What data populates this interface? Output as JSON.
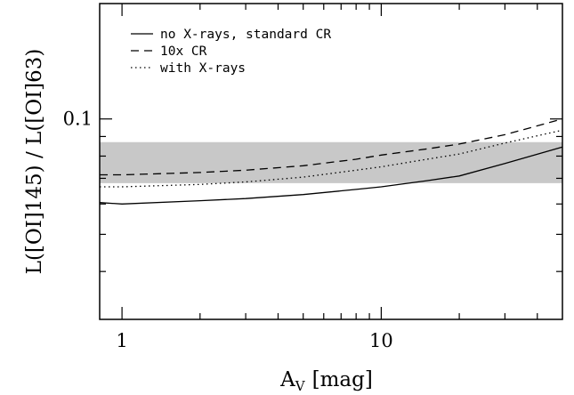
{
  "chart_data": {
    "type": "line",
    "xlabel": "A_V [mag]",
    "xlabel_main": "A",
    "xlabel_sub": "V",
    "xlabel_unit": "[mag]",
    "ylabel": "L([OI]145) / L([OI]63)",
    "x_scale": "log",
    "y_scale": "log",
    "xlim": [
      0.82,
      50
    ],
    "ylim": [
      0.03,
      0.2
    ],
    "x_ticks": [
      {
        "value": 1,
        "label": "1"
      },
      {
        "value": 10,
        "label": "10"
      }
    ],
    "y_ticks": [
      {
        "value": 0.1,
        "label": "0.1"
      }
    ],
    "x_minor_ticks": [
      2,
      3,
      4,
      5,
      6,
      7,
      8,
      9,
      20,
      30,
      40
    ],
    "y_minor_ticks": [
      0.04,
      0.05,
      0.06,
      0.07,
      0.08,
      0.09
    ],
    "shaded_band": {
      "y_range": [
        0.068,
        0.087
      ],
      "color": "#c8c8c8"
    },
    "legend_position": "top-left",
    "series": [
      {
        "name": "no X-rays, standard CR",
        "style": "solid",
        "x": [
          0.82,
          1,
          2,
          3,
          5,
          8,
          10,
          15,
          20,
          30,
          50
        ],
        "y": [
          0.0605,
          0.06,
          0.0612,
          0.062,
          0.0635,
          0.0655,
          0.0665,
          0.069,
          0.071,
          0.0765,
          0.0845
        ]
      },
      {
        "name": "10x CR",
        "style": "dashed",
        "x": [
          0.82,
          1,
          2,
          3,
          5,
          8,
          10,
          15,
          20,
          30,
          50
        ],
        "y": [
          0.0715,
          0.0715,
          0.0725,
          0.0735,
          0.0755,
          0.0785,
          0.0805,
          0.0835,
          0.086,
          0.091,
          0.1
        ]
      },
      {
        "name": "with X-rays",
        "style": "dotted",
        "x": [
          0.82,
          1,
          2,
          3,
          5,
          8,
          10,
          15,
          20,
          30,
          50
        ],
        "y": [
          0.0665,
          0.0665,
          0.0675,
          0.0685,
          0.0705,
          0.0735,
          0.075,
          0.0785,
          0.081,
          0.0865,
          0.0935
        ]
      }
    ]
  }
}
